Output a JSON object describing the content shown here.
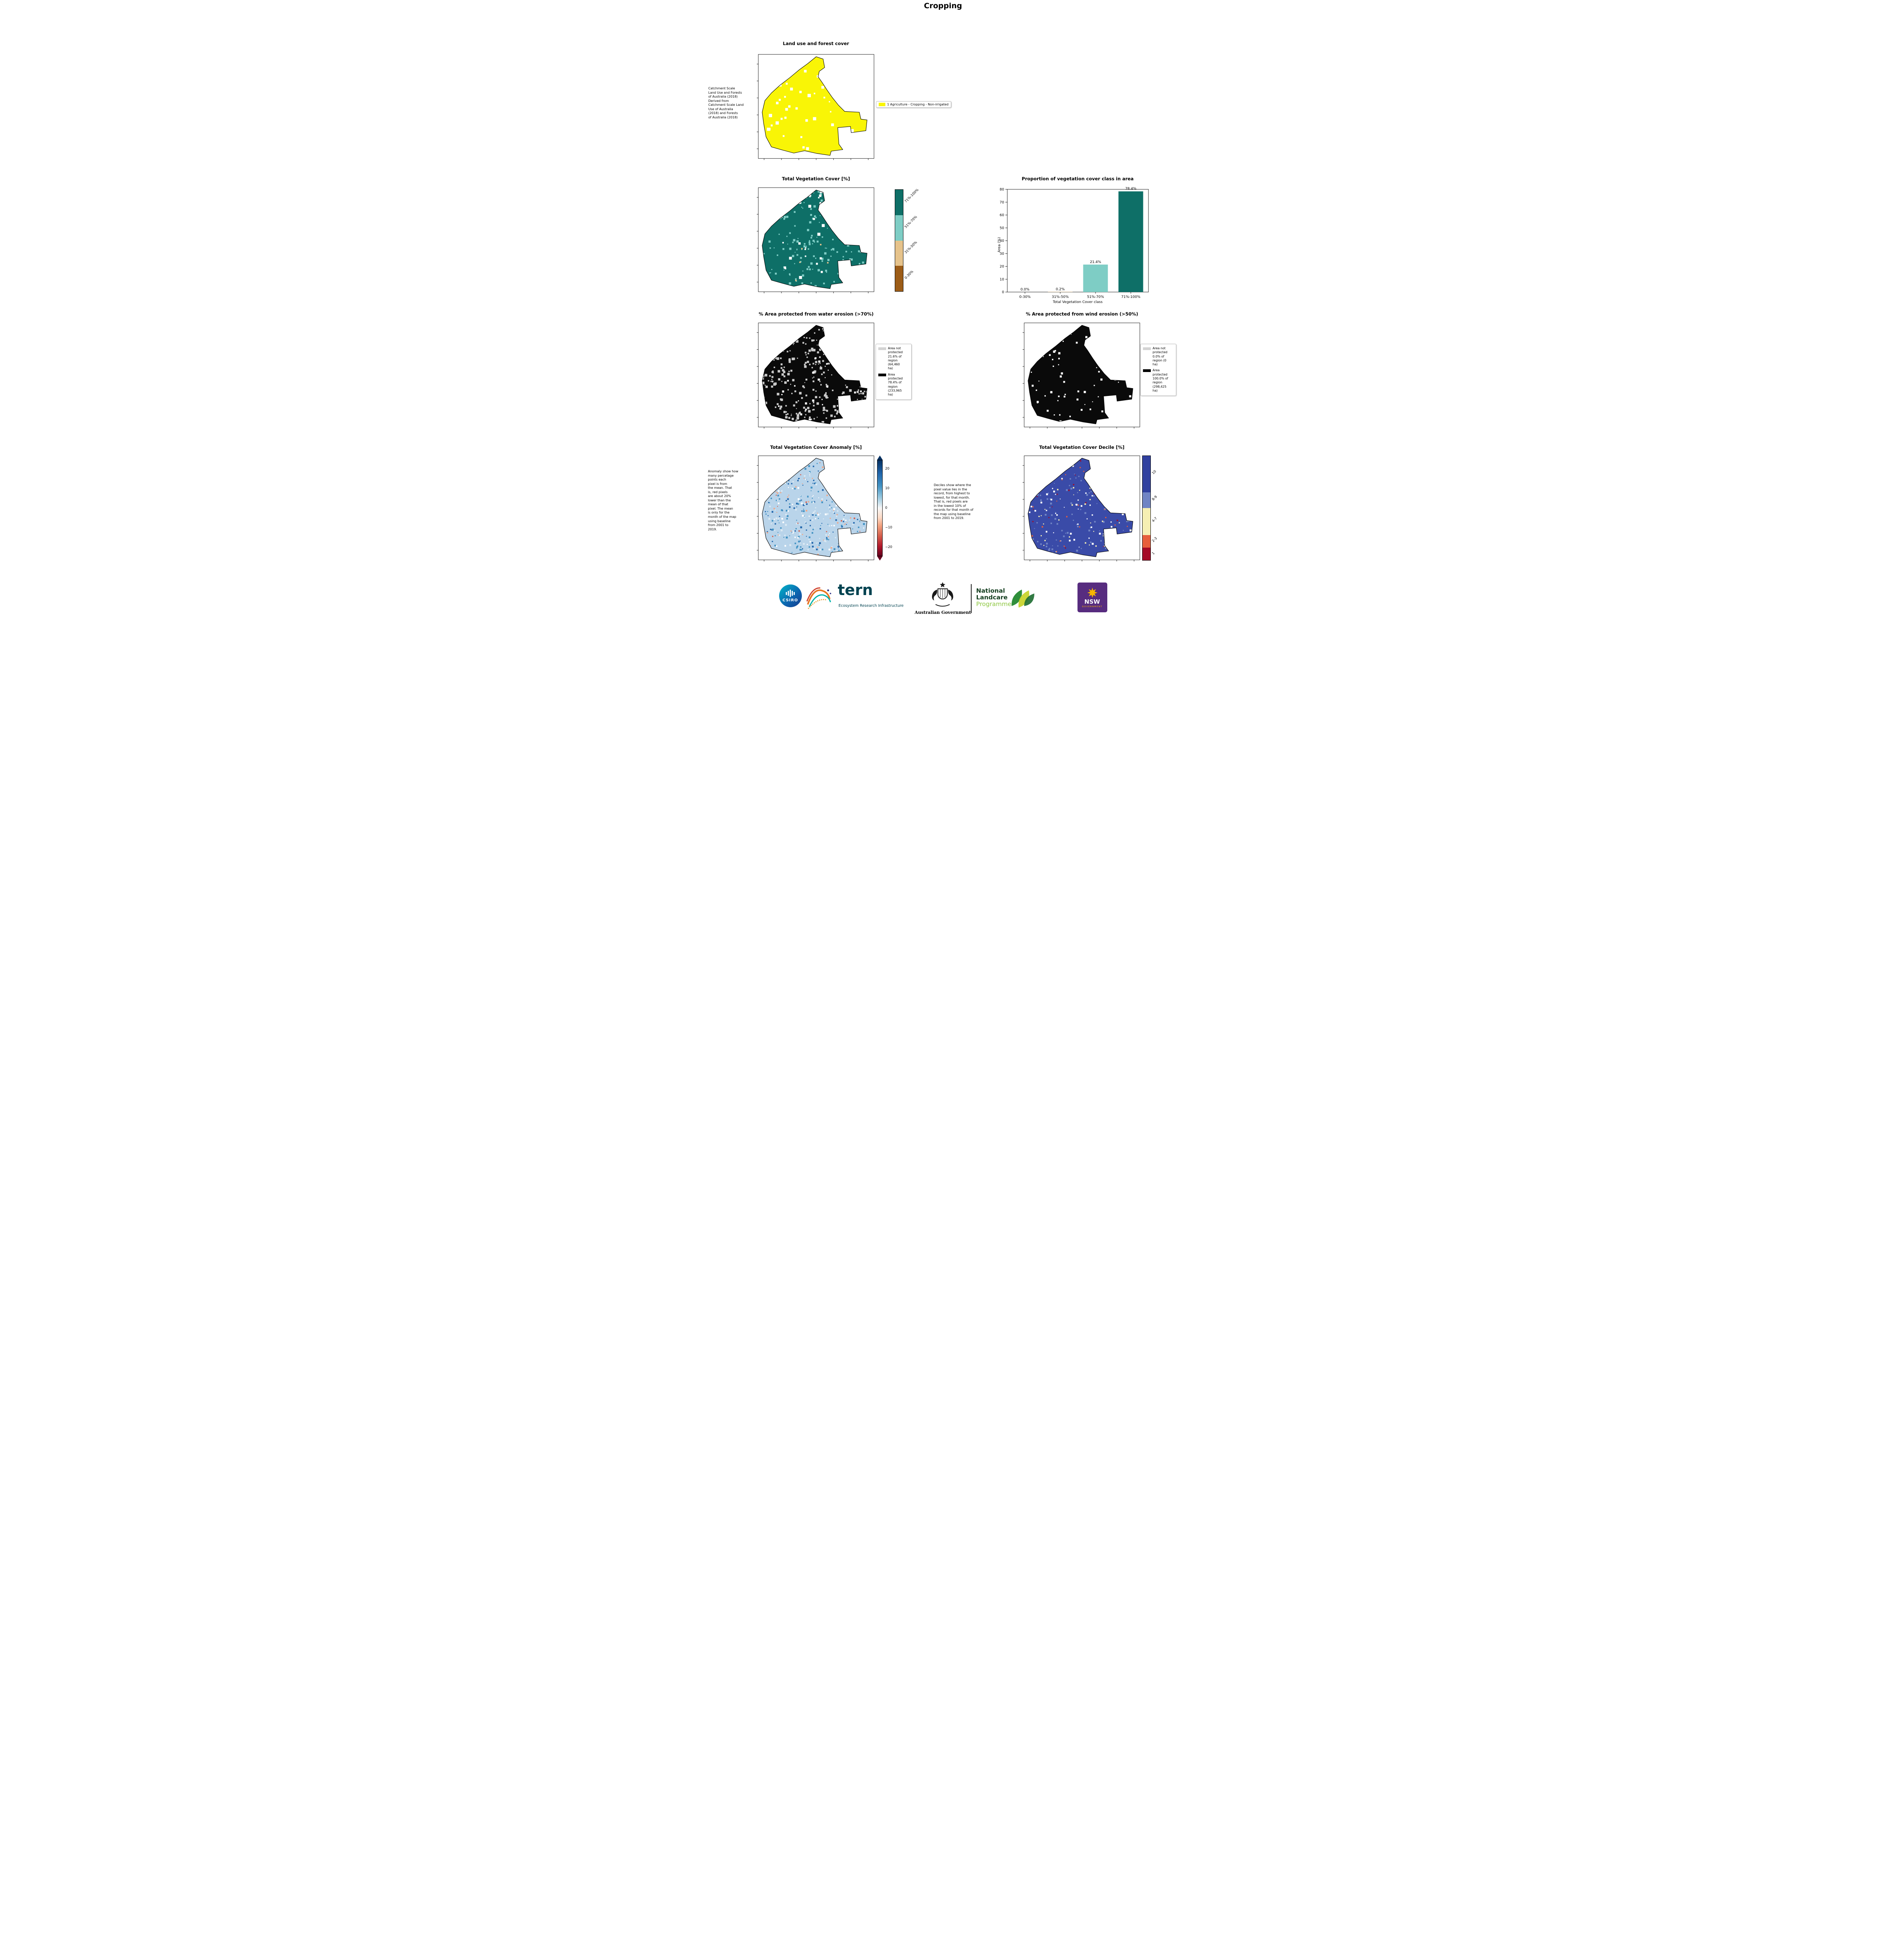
{
  "title": "Cropping",
  "panels": {
    "landuse": {
      "title": "Land use and forest cover",
      "side_text": "Catchment Scale\nLand Use and Forests\nof Australia (2018)\nDerived from\nCatchment Scale Land\nUse of Australia\n(2018) and Forests\nof Australia (2018)",
      "legend_label": "1 Agriculture - Cropping - Non-irrigated",
      "legend_color": "#f9f506"
    },
    "veg": {
      "title": "Total Vegetation Cover [%]",
      "colorbar": [
        {
          "label": "71%-100%",
          "color": "#0e6f67"
        },
        {
          "label": "51%-70%",
          "color": "#7ecdc5"
        },
        {
          "label": "31%-50%",
          "color": "#e6c38b"
        },
        {
          "label": "0-30%",
          "color": "#9c5c17"
        }
      ]
    },
    "water": {
      "title": "% Area protected from water erosion (>70%)",
      "legend": [
        {
          "label": "Area not\nprotected\n21.6% of\nregion\n(64,460\nha)",
          "color": "#d3d3d3"
        },
        {
          "label": "Area\nprotected\n78.4% of\nregion\n(233,965\nha)",
          "color": "#000000"
        }
      ]
    },
    "wind": {
      "title": "% Area protected from wind erosion (>50%)",
      "legend": [
        {
          "label": "Area not\nprotected\n0.0% of\nregion (0\nha)",
          "color": "#d3d3d3"
        },
        {
          "label": "Area\nprotected\n100.0% of\nregion\n(298,425\nha)",
          "color": "#000000"
        }
      ]
    },
    "anomaly": {
      "title": "Total Vegetation Cover Anomaly [%]",
      "side_text": "Anomaly show how\nmany percetage\npoints each\npixel is from\nthe mean. That\nis, red pixels\nare about 20%\nlower than the\nmean of that\npixel. The mean\nis only for the\nmonth of the map\nusing baseline\nfrom 2001 to\n2019.",
      "colorbar_ticks": [
        "20",
        "10",
        "0",
        "−10",
        "−20"
      ],
      "colorbar_top_color": "#053061",
      "colorbar_bottom_color": "#67001f"
    },
    "decile": {
      "title": "Total Vegetation Cover Decile [%]",
      "side_text": "Deciles show where the\npixel value lies in the\nrecord, from highest to\nlowest, for that month.\nThat is, red pixels are\nin the lowest 10% of\nrecords for that month of\nthe map using baseline\nfrom 2001 to 2019.",
      "colorbar": [
        {
          "label": "10",
          "color": "#30409f"
        },
        {
          "label": "8-9",
          "color": "#7084c4"
        },
        {
          "label": "4-7",
          "color": "#f6efb3"
        },
        {
          "label": "2-3",
          "color": "#e75f3c"
        },
        {
          "label": "1",
          "color": "#a50a26"
        }
      ]
    }
  },
  "chart_data": {
    "type": "bar",
    "title": "Proportion of vegetation cover class in area",
    "categories": [
      "0-30%",
      "31%-50%",
      "51%-70%",
      "71%-100%"
    ],
    "values": [
      0.0,
      0.2,
      21.4,
      78.4
    ],
    "bar_labels": [
      "0.0%",
      "0.2%",
      "21.4%",
      "78.4%"
    ],
    "bar_colors": [
      "#9c5c17",
      "#e6c38b",
      "#7ecdc5",
      "#0e6f67"
    ],
    "xlabel": "Total Vegetation Cover class",
    "ylabel": "Area (%)",
    "ylim": [
      0,
      80
    ],
    "yticks": [
      0,
      10,
      20,
      30,
      40,
      50,
      60,
      70,
      80
    ],
    "grid": false,
    "legend_position": "none"
  },
  "maps": {
    "landuse": {
      "base": "#f9f506",
      "speckles": [
        {
          "color": "#ffffff",
          "count": 60,
          "min": 3,
          "max": 9
        }
      ]
    },
    "veg": {
      "base": "#0e6f67",
      "speckles": [
        {
          "color": "#7ecdc5",
          "count": 260,
          "min": 2,
          "max": 6
        },
        {
          "color": "#ffffff",
          "count": 45,
          "min": 3,
          "max": 8
        },
        {
          "color": "#e6c38b",
          "count": 10,
          "min": 2,
          "max": 4
        }
      ]
    },
    "water": {
      "base": "#0a0a0a",
      "speckles": [
        {
          "color": "#c9c9c9",
          "count": 420,
          "min": 2,
          "max": 7
        },
        {
          "color": "#ffffff",
          "count": 55,
          "min": 2,
          "max": 6
        }
      ]
    },
    "wind": {
      "base": "#0a0a0a",
      "speckles": [
        {
          "color": "#ffffff",
          "count": 90,
          "min": 2,
          "max": 6
        }
      ]
    },
    "anomaly": {
      "base": "#b9d4ea",
      "speckles": [
        {
          "color": "#2166ac",
          "count": 160,
          "min": 2,
          "max": 5
        },
        {
          "color": "#4393c3",
          "count": 160,
          "min": 2,
          "max": 5
        },
        {
          "color": "#dbe9f3",
          "count": 140,
          "min": 2,
          "max": 5
        },
        {
          "color": "#ffffff",
          "count": 80,
          "min": 2,
          "max": 5
        },
        {
          "color": "#f4a582",
          "count": 70,
          "min": 2,
          "max": 4
        },
        {
          "color": "#d6604d",
          "count": 30,
          "min": 2,
          "max": 4
        }
      ]
    },
    "decile": {
      "base": "#3a4ba8",
      "speckles": [
        {
          "color": "#7084c4",
          "count": 150,
          "min": 2,
          "max": 5
        },
        {
          "color": "#ffffff",
          "count": 80,
          "min": 2,
          "max": 5
        },
        {
          "color": "#f6efb3",
          "count": 50,
          "min": 2,
          "max": 4
        },
        {
          "color": "#e75f3c",
          "count": 40,
          "min": 2,
          "max": 4
        },
        {
          "color": "#a50a26",
          "count": 28,
          "min": 2,
          "max": 4
        }
      ]
    }
  },
  "footer": {
    "csiro": "CSIRO",
    "tern": "tern",
    "tern_subtitle": "Ecosystem Research Infrastructure",
    "aus_gov": "Australian Government",
    "landcare_line1": "National",
    "landcare_line2": "Landcare",
    "landcare_line3": "Programme",
    "nsw_line1": "NSW",
    "nsw_line2": "GOVERNMENT"
  }
}
